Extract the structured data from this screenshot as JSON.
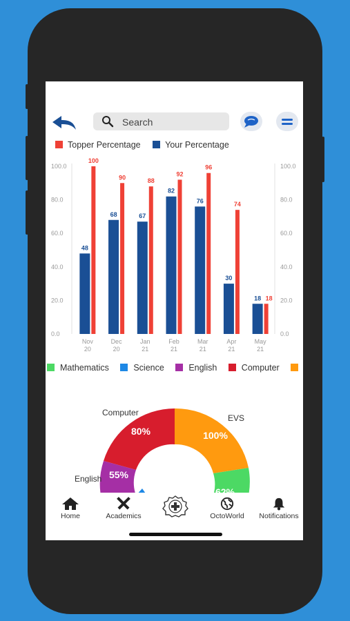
{
  "header": {
    "search_placeholder": "Search"
  },
  "tabbar": [
    {
      "label": "Home",
      "icon": "home-icon"
    },
    {
      "label": "Academics",
      "icon": "academics-icon"
    },
    {
      "label": "",
      "icon": "badge-plus-icon"
    },
    {
      "label": "OctoWorld",
      "icon": "globe-icon"
    },
    {
      "label": "Notifications",
      "icon": "bell-icon"
    }
  ],
  "colors": {
    "background": "#2f8fd8",
    "topper": "#ef4136",
    "yours": "#1a4f95",
    "mathematics": "#4cd964",
    "science": "#1e88e5",
    "english": "#a52fa5",
    "computer": "#d71d2d",
    "evs": "#ff9a0f"
  },
  "chart_data": [
    {
      "type": "bar",
      "categories": [
        "Nov 20",
        "Dec 20",
        "Jan 21",
        "Feb 21",
        "Mar 21",
        "Apr 21",
        "May 21"
      ],
      "series": [
        {
          "name": "Topper Percentage",
          "values": [
            100,
            90,
            88,
            92,
            96,
            74,
            18
          ]
        },
        {
          "name": "Your Percentage",
          "values": [
            48,
            68,
            67,
            82,
            76,
            30,
            18
          ]
        }
      ],
      "ylim": [
        0,
        100
      ],
      "yticks": [
        "0.0",
        "20.0",
        "40.0",
        "60.0",
        "80.0",
        "100.0"
      ],
      "legend": "top",
      "grid": false
    },
    {
      "type": "pie",
      "legend": [
        "Mathematics",
        "Science",
        "English",
        "Computer",
        ""
      ],
      "slices": [
        {
          "label": "Computer",
          "value_label": "80%"
        },
        {
          "label": "EVS",
          "value_label": "100%"
        },
        {
          "label": "English",
          "value_label": "55%"
        },
        {
          "label": "",
          "value_label": "62%"
        }
      ]
    }
  ]
}
